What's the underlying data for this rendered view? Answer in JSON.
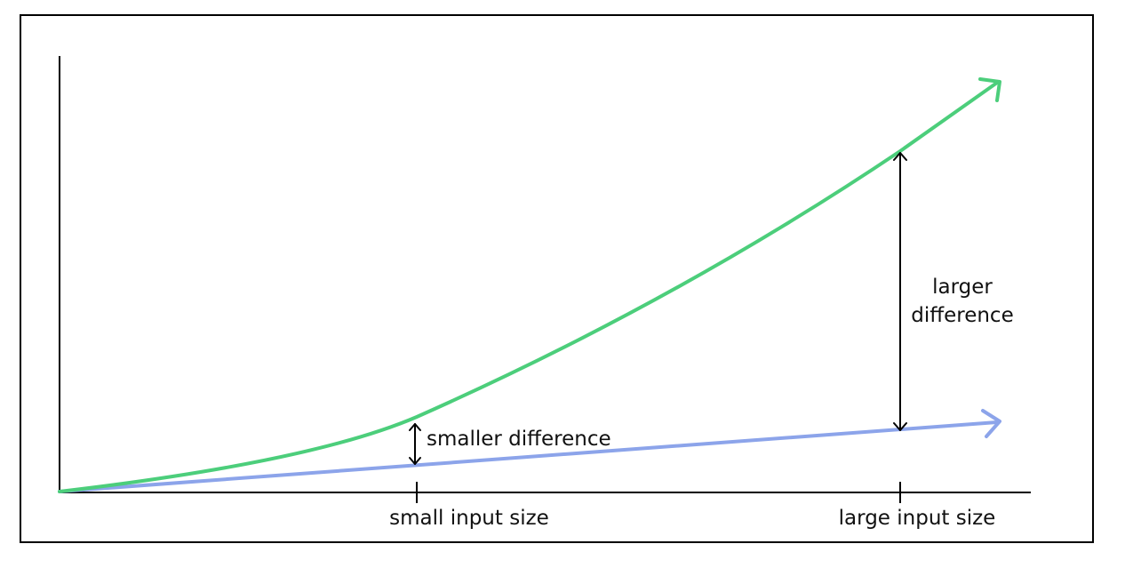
{
  "colors": {
    "green_line": "#4cce7b",
    "blue_line": "#8ca4ea",
    "ink": "#111111"
  },
  "series": [
    {
      "id": "green",
      "shape": "quadratic-growth"
    },
    {
      "id": "blue",
      "shape": "linear-growth"
    }
  ],
  "x_axis": {
    "ticks": [
      {
        "label": "small input size"
      },
      {
        "label": "large input size"
      }
    ]
  },
  "annotations": {
    "small_gap_label": "smaller difference",
    "large_gap_label_line1": "larger",
    "large_gap_label_line2": "difference"
  }
}
